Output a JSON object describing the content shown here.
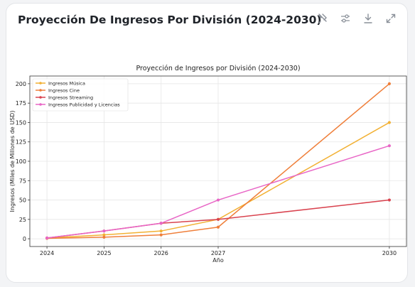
{
  "card": {
    "title": "Proyección De Ingresos Por División (2024-2030)"
  },
  "toolbar": {
    "icons": [
      "reset-zoom-icon",
      "settings-sliders-icon",
      "download-icon",
      "expand-icon"
    ]
  },
  "chart_data": {
    "type": "line",
    "title": "Proyección de Ingresos por División (2024-2030)",
    "xlabel": "Año",
    "ylabel": "Ingresos (Miles de Millones de USD)",
    "x": [
      2024,
      2025,
      2026,
      2027,
      2030
    ],
    "xticks": [
      2024,
      2025,
      2026,
      2027,
      2030
    ],
    "yticks": [
      0,
      25,
      50,
      75,
      100,
      125,
      150,
      175,
      200
    ],
    "xlim": [
      2023.7,
      2030.3
    ],
    "ylim": [
      -10,
      210
    ],
    "grid": true,
    "legend": "top-left",
    "series": [
      {
        "name": "Ingresos Música",
        "color": "#f2b134",
        "values": [
          1,
          5,
          10,
          25,
          150
        ]
      },
      {
        "name": "Ingresos Cine",
        "color": "#ef7f3a",
        "values": [
          0.5,
          2,
          5,
          15,
          200
        ]
      },
      {
        "name": "Ingresos Streaming",
        "color": "#d9434f",
        "values": [
          1,
          10,
          20,
          25,
          50
        ]
      },
      {
        "name": "Ingresos Publicidad y Licencias",
        "color": "#e866c6",
        "values": [
          1,
          10,
          20,
          50,
          120
        ]
      }
    ]
  }
}
